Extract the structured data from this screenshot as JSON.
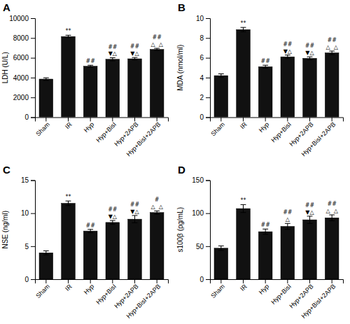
{
  "chart_data": [
    {
      "type": "bar",
      "title": "A",
      "ylabel": "LDH (U/L)",
      "categories": [
        "Sham",
        "IR",
        "Hyp",
        "Hyp+BisI",
        "Hyp+2APB",
        "Hyp+BisI+2APB"
      ],
      "values": [
        3850,
        8150,
        5150,
        5850,
        5900,
        6850
      ],
      "errors": [
        130,
        130,
        100,
        160,
        130,
        110
      ],
      "color": "#111111",
      "ylim": [
        0,
        10000
      ],
      "yticks": [
        0,
        2000,
        4000,
        6000,
        8000,
        10000
      ],
      "grid": false,
      "annotations": [
        {
          "category": "IR",
          "lines": [
            "**"
          ]
        },
        {
          "category": "Hyp",
          "lines": [
            "##"
          ]
        },
        {
          "category": "Hyp+BisI",
          "lines": [
            "▼△",
            "##"
          ]
        },
        {
          "category": "Hyp+2APB",
          "lines": [
            "▼△",
            "##"
          ]
        },
        {
          "category": "Hyp+BisI+2APB",
          "lines": [
            "△  △",
            "##"
          ]
        }
      ]
    },
    {
      "type": "bar",
      "title": "B",
      "ylabel": "MDA (nmol/ml)",
      "categories": [
        "Sham",
        "IR",
        "Hyp",
        "Hyp+BisI",
        "Hyp+2APB",
        "Hyp+BisI+2APB"
      ],
      "values": [
        4.2,
        8.85,
        5.1,
        6.1,
        5.95,
        6.5
      ],
      "errors": [
        0.18,
        0.22,
        0.15,
        0.18,
        0.15,
        0.18
      ],
      "color": "#111111",
      "ylim": [
        0,
        10
      ],
      "yticks": [
        0,
        2,
        4,
        6,
        8,
        10
      ],
      "grid": false,
      "annotations": [
        {
          "category": "IR",
          "lines": [
            "**"
          ]
        },
        {
          "category": "Hyp",
          "lines": [
            "##"
          ]
        },
        {
          "category": "Hyp+BisI",
          "lines": [
            "▼△",
            "##"
          ]
        },
        {
          "category": "Hyp+2APB",
          "lines": [
            "▼△",
            "##"
          ]
        },
        {
          "category": "Hyp+BisI+2APB",
          "lines": [
            "△  △",
            "##"
          ]
        }
      ]
    },
    {
      "type": "bar",
      "title": "C",
      "ylabel": "NSE (ng/ml)",
      "categories": [
        "Sham",
        "IR",
        "Hyp",
        "Hyp+BisI",
        "Hyp+2APB",
        "Hyp+BisI+2APB"
      ],
      "values": [
        4.0,
        11.5,
        7.3,
        8.6,
        9.1,
        10.1
      ],
      "errors": [
        0.3,
        0.35,
        0.25,
        0.3,
        0.55,
        0.25
      ],
      "color": "#111111",
      "ylim": [
        0,
        15
      ],
      "yticks": [
        0,
        5,
        10,
        15
      ],
      "grid": false,
      "annotations": [
        {
          "category": "IR",
          "lines": [
            "**"
          ]
        },
        {
          "category": "Hyp",
          "lines": [
            "##"
          ]
        },
        {
          "category": "Hyp+BisI",
          "lines": [
            "▼△",
            "##"
          ]
        },
        {
          "category": "Hyp+2APB",
          "lines": [
            "▼△",
            "##"
          ]
        },
        {
          "category": "Hyp+BisI+2APB",
          "lines": [
            "△  △",
            "#"
          ]
        }
      ]
    },
    {
      "type": "bar",
      "title": "D",
      "ylabel": "s100β (pg/mL)",
      "categories": [
        "Sham",
        "IR",
        "Hyp",
        "Hyp+BisI",
        "Hyp+2APB",
        "Hyp+BisI+2APB"
      ],
      "values": [
        47,
        107,
        72,
        80,
        90,
        93
      ],
      "errors": [
        3.5,
        6,
        4,
        4.5,
        5.5,
        4.5
      ],
      "color": "#111111",
      "ylim": [
        0,
        150
      ],
      "yticks": [
        0,
        50,
        100,
        150
      ],
      "grid": false,
      "annotations": [
        {
          "category": "IR",
          "lines": [
            "**"
          ]
        },
        {
          "category": "Hyp",
          "lines": [
            "##"
          ]
        },
        {
          "category": "Hyp+BisI",
          "lines": [
            "△",
            "##"
          ]
        },
        {
          "category": "Hyp+2APB",
          "lines": [
            "▼△",
            "##"
          ]
        },
        {
          "category": "Hyp+BisI+2APB",
          "lines": [
            "△  △",
            "##"
          ]
        }
      ]
    }
  ]
}
